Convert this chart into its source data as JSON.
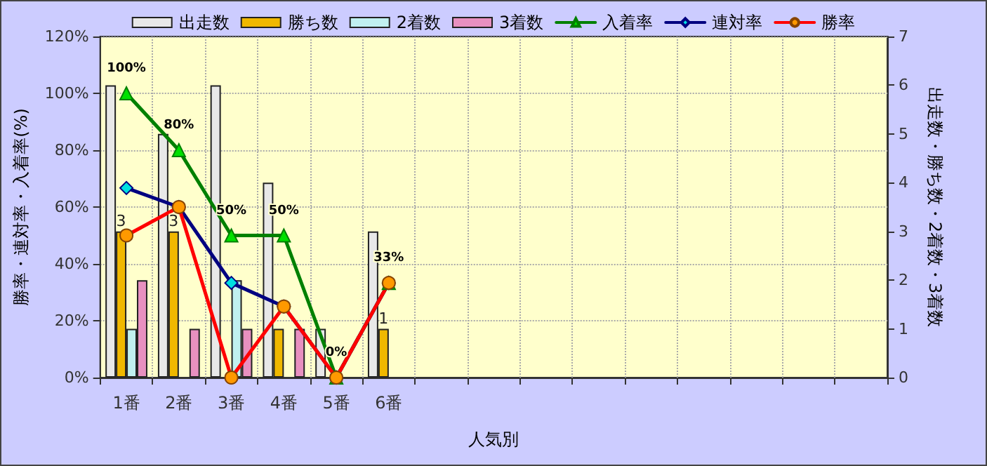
{
  "chart_data": {
    "type": "bar",
    "xlabel": "人気別",
    "ylabel": "勝率・連対率・入着率(%)",
    "y2label": "出走数・勝ち数・2着数・3着数",
    "categories": [
      "1番",
      "2番",
      "3番",
      "4番",
      "5番",
      "6番",
      null,
      null,
      null,
      null,
      null,
      null,
      null,
      null,
      null
    ],
    "series": [
      {
        "name": "出走数",
        "axis": "y2",
        "color": "#e8e8e8",
        "values": [
          6,
          5,
          6,
          4,
          1,
          3,
          null,
          null,
          null,
          null,
          null,
          null,
          null,
          null,
          null
        ]
      },
      {
        "name": "勝ち数",
        "axis": "y2",
        "color": "#f0b800",
        "values": [
          3,
          3,
          0,
          1,
          0,
          1,
          null,
          null,
          null,
          null,
          null,
          null,
          null,
          null,
          null
        ],
        "value_labels": [
          "3",
          "3",
          null,
          null,
          null,
          "1",
          null,
          null,
          null,
          null,
          null,
          null,
          null,
          null,
          null
        ]
      },
      {
        "name": "2着数",
        "axis": "y2",
        "color": "#c0f0f0",
        "values": [
          1,
          0,
          2,
          0,
          0,
          0,
          null,
          null,
          null,
          null,
          null,
          null,
          null,
          null,
          null
        ]
      },
      {
        "name": "3着数",
        "axis": "y2",
        "color": "#e890c0",
        "values": [
          2,
          1,
          1,
          1,
          0,
          0,
          null,
          null,
          null,
          null,
          null,
          null,
          null,
          null,
          null
        ]
      },
      {
        "name": "入着率",
        "type": "line",
        "color": "#008000",
        "marker": "triangle",
        "values": [
          100,
          80,
          50,
          50,
          0,
          33.3,
          null,
          null,
          null,
          null,
          null,
          null,
          null,
          null,
          null
        ],
        "value_labels": [
          "100%",
          "80%",
          "50%",
          "50%",
          "0%",
          "33%",
          null,
          null,
          null,
          null,
          null,
          null,
          null,
          null,
          null
        ]
      },
      {
        "name": "連対率",
        "type": "line",
        "color": "#000080",
        "marker": "diamond",
        "values": [
          66.7,
          60,
          33.3,
          25,
          0,
          33.3,
          null,
          null,
          null,
          null,
          null,
          null,
          null,
          null,
          null
        ]
      },
      {
        "name": "勝率",
        "type": "line",
        "color": "#ff0000",
        "marker": "circle",
        "values": [
          50,
          60,
          0,
          25,
          0,
          33.3,
          null,
          null,
          null,
          null,
          null,
          null,
          null,
          null,
          null
        ]
      }
    ],
    "ylim": [
      0,
      120
    ],
    "yticks": [
      {
        "value": 0,
        "label": "0%"
      },
      {
        "value": 20,
        "label": "20%"
      },
      {
        "value": 40,
        "label": "40%"
      },
      {
        "value": 60,
        "label": "60%"
      },
      {
        "value": 80,
        "label": "80%"
      },
      {
        "value": 100,
        "label": "100%"
      },
      {
        "value": 120,
        "label": "120%"
      }
    ],
    "y2lim": [
      0,
      7
    ],
    "y2ticks": [
      0,
      1,
      2,
      3,
      4,
      5,
      6,
      7
    ],
    "grid": true,
    "legend": "top",
    "line_style": "solid"
  }
}
